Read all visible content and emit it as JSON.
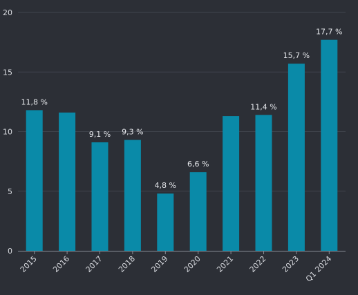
{
  "chart_data": {
    "type": "bar",
    "categories": [
      "2015",
      "2016",
      "2017",
      "2018",
      "2019",
      "2020",
      "2021",
      "2022",
      "2023",
      "Q1 2024"
    ],
    "values": [
      11.8,
      11.6,
      9.1,
      9.3,
      4.8,
      6.6,
      11.3,
      11.4,
      15.7,
      17.7
    ],
    "data_labels": [
      "11,8 %",
      "",
      "9,1 %",
      "9,3 %",
      "4,8 %",
      "6,6 %",
      "",
      "11,4 %",
      "15,7 %",
      "17,7 %"
    ],
    "ylim": [
      0,
      20
    ],
    "yticks": [
      0,
      5,
      10,
      15,
      20
    ],
    "ytick_labels": [
      "0",
      "5",
      "10",
      "15",
      "20"
    ],
    "grid": true,
    "bar_color": "#0a8aa8",
    "background_color": "#2c2f36",
    "title": "",
    "xlabel": "",
    "ylabel": ""
  }
}
